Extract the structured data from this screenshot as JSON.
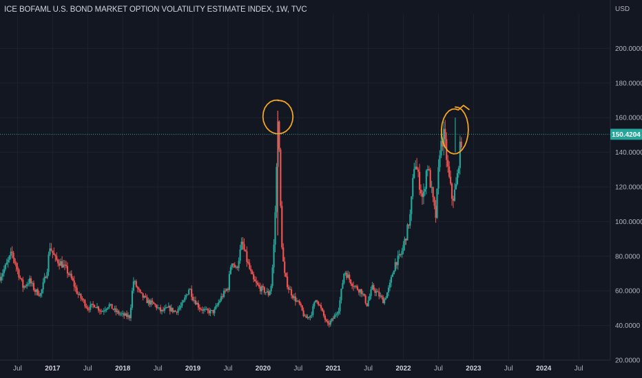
{
  "chart_data": {
    "type": "candlestick",
    "title": "ICE BOFAML U.S. BOND MARKET OPTION VOLATILITY ESTIMATE INDEX, 1W, TVC",
    "currency": "USD",
    "ylim": [
      20,
      220
    ],
    "yticks": [
      "200.0000",
      "180.0000",
      "160.0000",
      "140.0000",
      "120.0000",
      "100.0000",
      "80.0000",
      "60.0000",
      "40.0000",
      "20.0000"
    ],
    "ytick_values": [
      200,
      180,
      160,
      140,
      120,
      100,
      80,
      60,
      40,
      20
    ],
    "xlim": [
      2016.25,
      2024.95
    ],
    "xticks": [
      {
        "label": "Jul",
        "x": 2016.5,
        "year": false
      },
      {
        "label": "2017",
        "x": 2017.0,
        "year": true
      },
      {
        "label": "Jul",
        "x": 2017.5,
        "year": false
      },
      {
        "label": "2018",
        "x": 2018.0,
        "year": true
      },
      {
        "label": "Jul",
        "x": 2018.5,
        "year": false
      },
      {
        "label": "2019",
        "x": 2019.0,
        "year": true
      },
      {
        "label": "Jul",
        "x": 2019.5,
        "year": false
      },
      {
        "label": "2020",
        "x": 2020.0,
        "year": true
      },
      {
        "label": "Jul",
        "x": 2020.5,
        "year": false
      },
      {
        "label": "2021",
        "x": 2021.0,
        "year": true
      },
      {
        "label": "Jul",
        "x": 2021.5,
        "year": false
      },
      {
        "label": "2022",
        "x": 2022.0,
        "year": true
      },
      {
        "label": "Jul",
        "x": 2022.5,
        "year": false
      },
      {
        "label": "2023",
        "x": 2023.0,
        "year": true
      },
      {
        "label": "Jul",
        "x": 2023.5,
        "year": false
      },
      {
        "label": "2024",
        "x": 2024.0,
        "year": true
      },
      {
        "label": "Jul",
        "x": 2024.5,
        "year": false
      }
    ],
    "last_price": 150.4204,
    "last_price_label": "150.4204",
    "grid": true,
    "series": [
      {
        "x": 2016.25,
        "y": 68
      },
      {
        "x": 2016.33,
        "y": 74
      },
      {
        "x": 2016.42,
        "y": 82
      },
      {
        "x": 2016.5,
        "y": 72
      },
      {
        "x": 2016.58,
        "y": 62
      },
      {
        "x": 2016.67,
        "y": 66
      },
      {
        "x": 2016.75,
        "y": 60
      },
      {
        "x": 2016.83,
        "y": 58
      },
      {
        "x": 2016.92,
        "y": 72
      },
      {
        "x": 2016.96,
        "y": 86
      },
      {
        "x": 2017.04,
        "y": 78
      },
      {
        "x": 2017.12,
        "y": 76
      },
      {
        "x": 2017.2,
        "y": 72
      },
      {
        "x": 2017.28,
        "y": 66
      },
      {
        "x": 2017.36,
        "y": 58
      },
      {
        "x": 2017.44,
        "y": 54
      },
      {
        "x": 2017.5,
        "y": 50
      },
      {
        "x": 2017.6,
        "y": 52
      },
      {
        "x": 2017.7,
        "y": 48
      },
      {
        "x": 2017.8,
        "y": 52
      },
      {
        "x": 2017.9,
        "y": 48
      },
      {
        "x": 2018.0,
        "y": 46
      },
      {
        "x": 2018.1,
        "y": 45
      },
      {
        "x": 2018.15,
        "y": 66
      },
      {
        "x": 2018.25,
        "y": 58
      },
      {
        "x": 2018.35,
        "y": 54
      },
      {
        "x": 2018.45,
        "y": 52
      },
      {
        "x": 2018.55,
        "y": 48
      },
      {
        "x": 2018.65,
        "y": 50
      },
      {
        "x": 2018.75,
        "y": 48
      },
      {
        "x": 2018.85,
        "y": 52
      },
      {
        "x": 2018.95,
        "y": 62
      },
      {
        "x": 2019.0,
        "y": 56
      },
      {
        "x": 2019.1,
        "y": 50
      },
      {
        "x": 2019.2,
        "y": 48
      },
      {
        "x": 2019.3,
        "y": 48
      },
      {
        "x": 2019.4,
        "y": 56
      },
      {
        "x": 2019.5,
        "y": 62
      },
      {
        "x": 2019.55,
        "y": 78
      },
      {
        "x": 2019.62,
        "y": 72
      },
      {
        "x": 2019.7,
        "y": 88
      },
      {
        "x": 2019.78,
        "y": 76
      },
      {
        "x": 2019.86,
        "y": 66
      },
      {
        "x": 2019.94,
        "y": 62
      },
      {
        "x": 2020.02,
        "y": 60
      },
      {
        "x": 2020.08,
        "y": 58
      },
      {
        "x": 2020.12,
        "y": 64
      },
      {
        "x": 2020.16,
        "y": 90
      },
      {
        "x": 2020.19,
        "y": 126
      },
      {
        "x": 2020.21,
        "y": 164
      },
      {
        "x": 2020.23,
        "y": 140
      },
      {
        "x": 2020.26,
        "y": 92
      },
      {
        "x": 2020.3,
        "y": 70
      },
      {
        "x": 2020.36,
        "y": 62
      },
      {
        "x": 2020.44,
        "y": 56
      },
      {
        "x": 2020.52,
        "y": 52
      },
      {
        "x": 2020.6,
        "y": 44
      },
      {
        "x": 2020.68,
        "y": 46
      },
      {
        "x": 2020.76,
        "y": 56
      },
      {
        "x": 2020.84,
        "y": 48
      },
      {
        "x": 2020.92,
        "y": 40
      },
      {
        "x": 2021.0,
        "y": 44
      },
      {
        "x": 2021.08,
        "y": 50
      },
      {
        "x": 2021.16,
        "y": 72
      },
      {
        "x": 2021.24,
        "y": 66
      },
      {
        "x": 2021.32,
        "y": 62
      },
      {
        "x": 2021.4,
        "y": 60
      },
      {
        "x": 2021.48,
        "y": 52
      },
      {
        "x": 2021.56,
        "y": 62
      },
      {
        "x": 2021.64,
        "y": 58
      },
      {
        "x": 2021.72,
        "y": 54
      },
      {
        "x": 2021.8,
        "y": 62
      },
      {
        "x": 2021.88,
        "y": 76
      },
      {
        "x": 2021.96,
        "y": 80
      },
      {
        "x": 2022.04,
        "y": 92
      },
      {
        "x": 2022.1,
        "y": 104
      },
      {
        "x": 2022.16,
        "y": 136
      },
      {
        "x": 2022.22,
        "y": 124
      },
      {
        "x": 2022.28,
        "y": 112
      },
      {
        "x": 2022.34,
        "y": 134
      },
      {
        "x": 2022.4,
        "y": 118
      },
      {
        "x": 2022.46,
        "y": 102
      },
      {
        "x": 2022.52,
        "y": 142
      },
      {
        "x": 2022.58,
        "y": 150
      },
      {
        "x": 2022.64,
        "y": 128
      },
      {
        "x": 2022.7,
        "y": 112
      },
      {
        "x": 2022.76,
        "y": 122
      },
      {
        "x": 2022.8,
        "y": 140
      },
      {
        "x": 2022.84,
        "y": 150.42
      }
    ],
    "annotations": [
      {
        "type": "circle",
        "x": 2020.21,
        "y": 160
      },
      {
        "type": "circle",
        "x": 2022.74,
        "y": 152
      }
    ]
  }
}
